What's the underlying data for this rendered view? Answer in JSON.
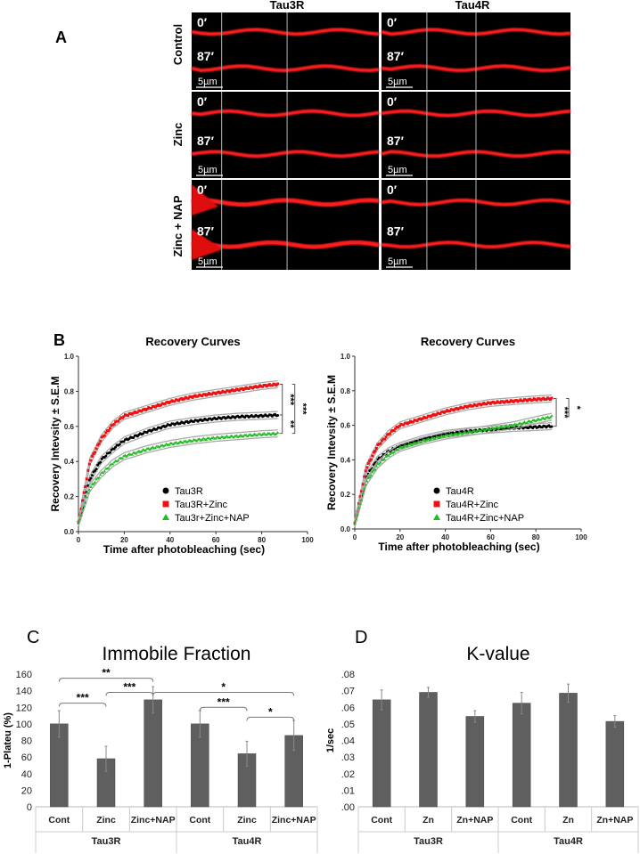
{
  "panel_a": {
    "label": "A",
    "columns": [
      "Tau3R",
      "Tau4R"
    ],
    "rows": [
      "Control",
      "Zinc",
      "Zinc + NAP"
    ],
    "time_labels": [
      "0′",
      "87′"
    ],
    "scale_bar": "5µm"
  },
  "chart_data": [
    {
      "panel": "B",
      "panel_label": "B",
      "type": "scatter",
      "title": "Recovery Curves",
      "xlabel": "Time after photobleaching (sec)",
      "ylabel": "Recovery Intevsity ± S.E.M",
      "xlim": [
        0,
        100
      ],
      "ylim": [
        0,
        1.0
      ],
      "xticks": [
        "0",
        "20",
        "40",
        "60",
        "80",
        "100"
      ],
      "yticks": [
        "0.0",
        "0.2",
        "0.4",
        "0.6",
        "0.8",
        "1.0"
      ],
      "legend": "bottom-right",
      "x": [
        0,
        5,
        10,
        15,
        20,
        30,
        40,
        50,
        60,
        70,
        80,
        87
      ],
      "series": [
        {
          "name": "Tau3R",
          "color": "#000000",
          "marker": "circle",
          "values": [
            0.05,
            0.3,
            0.41,
            0.47,
            0.52,
            0.57,
            0.61,
            0.63,
            0.645,
            0.655,
            0.66,
            0.665
          ]
        },
        {
          "name": "Tau3R+Zinc",
          "color": "#ee1111",
          "marker": "square",
          "values": [
            0.05,
            0.4,
            0.53,
            0.61,
            0.66,
            0.7,
            0.74,
            0.77,
            0.79,
            0.81,
            0.83,
            0.84
          ]
        },
        {
          "name": "Tau3r+Zinc+NAP",
          "color": "#22bb22",
          "marker": "triangle",
          "values": [
            0.05,
            0.25,
            0.33,
            0.39,
            0.43,
            0.47,
            0.5,
            0.52,
            0.535,
            0.545,
            0.555,
            0.56
          ]
        }
      ],
      "significance": [
        {
          "a": 1,
          "b": 0,
          "label": "***",
          "level": 0
        },
        {
          "a": 0,
          "b": 2,
          "label": "**",
          "level": 0
        },
        {
          "a": 1,
          "b": 2,
          "label": "***",
          "level": 1
        }
      ]
    },
    {
      "panel": "B-right",
      "type": "scatter",
      "title": "Recovery Curves",
      "xlabel": "Time after photobleaching (sec)",
      "ylabel": "Recovery Intevsity ± S.E.M",
      "xlim": [
        0,
        100
      ],
      "ylim": [
        0,
        1.0
      ],
      "xticks": [
        "0",
        "20",
        "40",
        "60",
        "80",
        "100"
      ],
      "yticks": [
        "0.0",
        "0.2",
        "0.4",
        "0.6",
        "0.8",
        "1.0"
      ],
      "legend": "bottom-right",
      "x": [
        0,
        5,
        10,
        15,
        20,
        30,
        40,
        50,
        60,
        70,
        80,
        87
      ],
      "series": [
        {
          "name": "Tau4R",
          "color": "#000000",
          "marker": "circle",
          "values": [
            0.03,
            0.3,
            0.4,
            0.45,
            0.48,
            0.52,
            0.55,
            0.565,
            0.575,
            0.585,
            0.59,
            0.595
          ]
        },
        {
          "name": "Tau4R+Zinc",
          "color": "#ee1111",
          "marker": "square",
          "values": [
            0.03,
            0.35,
            0.48,
            0.55,
            0.6,
            0.64,
            0.68,
            0.71,
            0.73,
            0.74,
            0.75,
            0.755
          ]
        },
        {
          "name": "Tau4R+Zinc+NAP",
          "color": "#22bb22",
          "marker": "triangle",
          "values": [
            0.03,
            0.27,
            0.37,
            0.43,
            0.47,
            0.51,
            0.54,
            0.56,
            0.58,
            0.6,
            0.63,
            0.65
          ]
        }
      ],
      "significance": [
        {
          "a": 1,
          "b": 0,
          "label": "***",
          "level": 0
        },
        {
          "a": 1,
          "b": 2,
          "label": "*",
          "level": 1
        }
      ]
    },
    {
      "panel": "C",
      "panel_label": "C",
      "type": "bar",
      "title": "Immobile Fraction",
      "ylabel": "1-Plateu (%)",
      "ylim": [
        0,
        160
      ],
      "yticks": [
        "0",
        "20",
        "40",
        "60",
        "80",
        "100",
        "120",
        "140",
        "160"
      ],
      "categories": [
        "Cont",
        "Zinc",
        "Zinc+NAP",
        "Cont",
        "Zinc",
        "Zinc+NAP"
      ],
      "groups": [
        "Tau3R",
        "Tau4R"
      ],
      "values": [
        100,
        58,
        129,
        100,
        64,
        86
      ],
      "errors": [
        16,
        15,
        16,
        16,
        15,
        18
      ],
      "color": "#5f5f5f",
      "significance": [
        {
          "a": 0,
          "b": 1,
          "y": 125,
          "label": "***"
        },
        {
          "a": 0,
          "b": 2,
          "y": 155,
          "label": "**"
        },
        {
          "a": 1,
          "b": 2,
          "y": 138,
          "label": "***"
        },
        {
          "a": 2,
          "b": 5,
          "y": 138,
          "label": "*"
        },
        {
          "a": 3,
          "b": 4,
          "y": 120,
          "label": "***"
        },
        {
          "a": 4,
          "b": 5,
          "y": 108,
          "label": "*"
        }
      ]
    },
    {
      "panel": "D",
      "panel_label": "D",
      "type": "bar",
      "title": "K-value",
      "ylabel": "1/sec",
      "ylim": [
        0,
        0.08
      ],
      "yticks": [
        ".00",
        ".01",
        ".02",
        ".03",
        ".04",
        ".05",
        ".06",
        ".07",
        ".08"
      ],
      "categories": [
        "Cont",
        "Zn",
        "Zn+NAP",
        "Cont",
        "Zn",
        "Zn+NAP"
      ],
      "groups": [
        "Tau3R",
        "Tau4R"
      ],
      "values": [
        0.0645,
        0.069,
        0.0545,
        0.0625,
        0.0685,
        0.0515
      ],
      "errors": [
        0.006,
        0.003,
        0.0035,
        0.0065,
        0.0055,
        0.0035
      ],
      "color": "#5f5f5f",
      "significance": []
    }
  ]
}
